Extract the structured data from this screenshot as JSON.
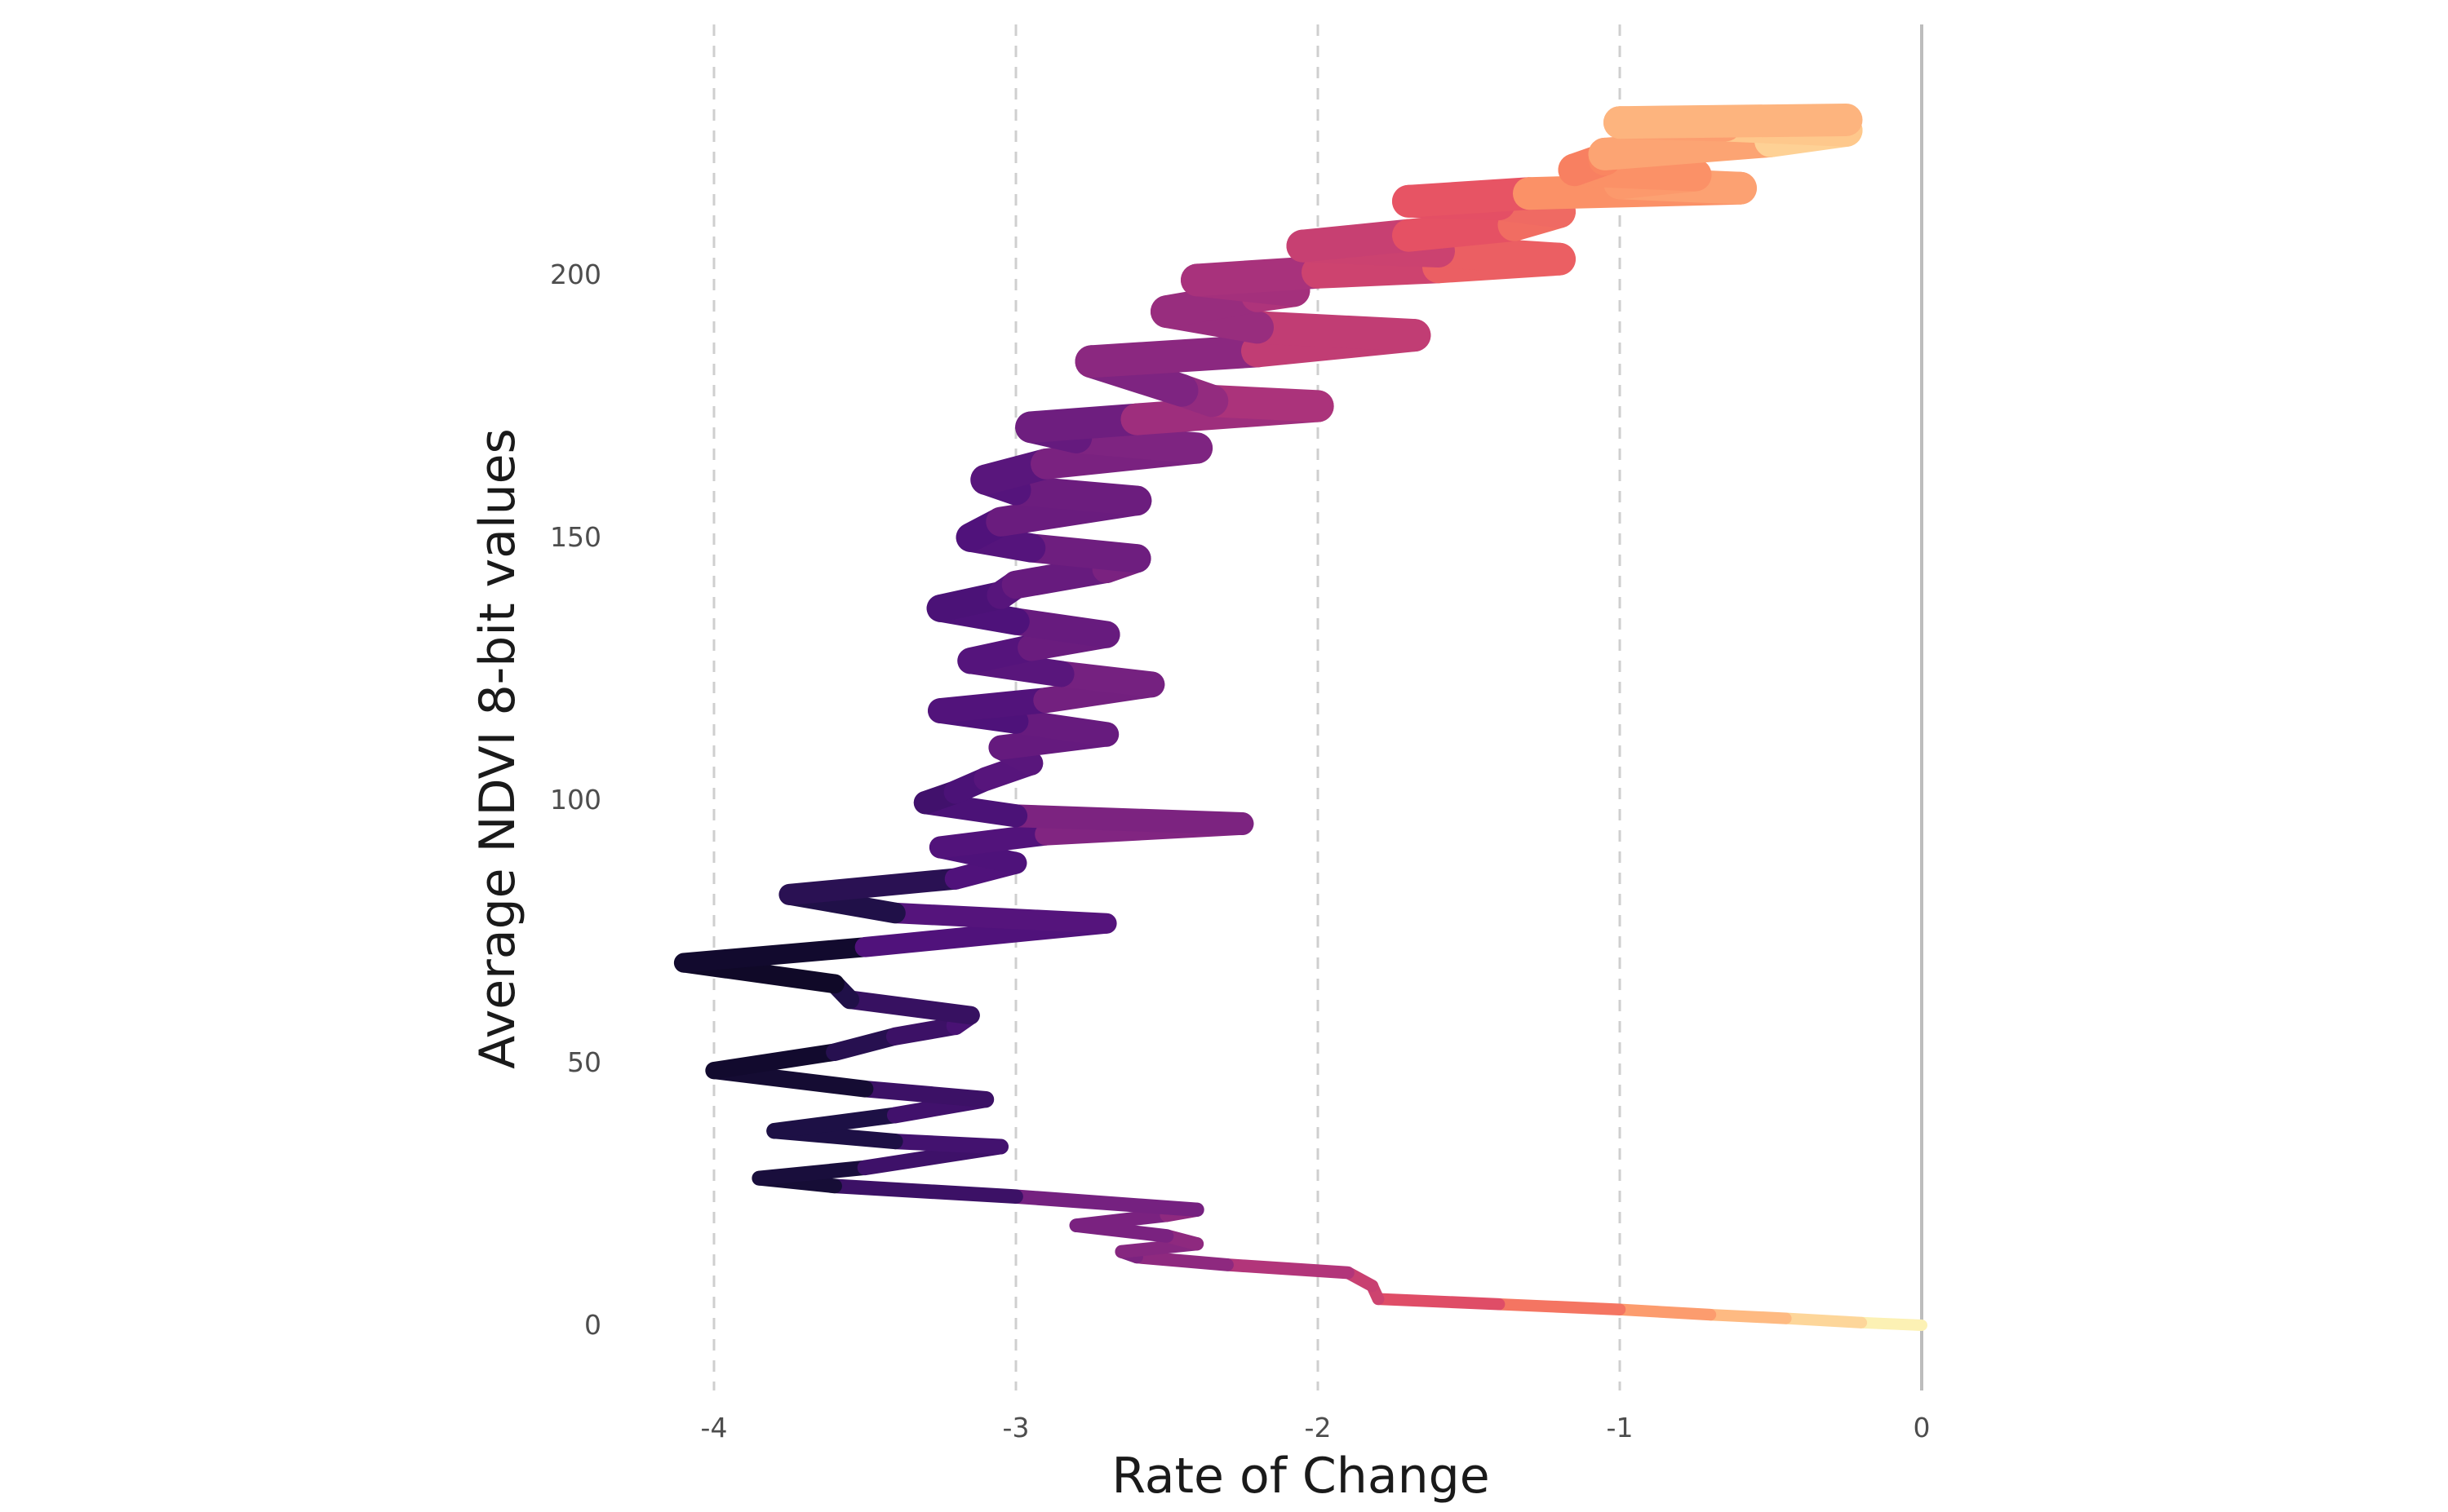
{
  "chart_data": {
    "type": "line",
    "xlabel": "Rate of Change",
    "ylabel": "Average NDVI 8-bit values",
    "xlim": [
      -4.3,
      0.05
    ],
    "ylim": [
      -10,
      242
    ],
    "x_ticks": [
      -4,
      -3,
      -2,
      -1,
      0
    ],
    "x_tick_labels": [
      "-4",
      "-3",
      "-2",
      "-1",
      "0"
    ],
    "y_ticks": [
      0,
      50,
      100,
      150,
      200
    ],
    "y_tick_labels": [
      "0",
      "50",
      "100",
      "150",
      "200"
    ],
    "grid": {
      "vertical_dashed": true,
      "horizontal": false
    },
    "reference_line_x": 0,
    "color_scale": "magma",
    "color_range": {
      "low": "#000004",
      "high": "#fcfdbf"
    },
    "points": [
      {
        "x": 0.0,
        "y": 0
      },
      {
        "x": -0.2,
        "y": 0.5
      },
      {
        "x": -0.45,
        "y": 1.3
      },
      {
        "x": -0.7,
        "y": 2
      },
      {
        "x": -1.0,
        "y": 3
      },
      {
        "x": -1.4,
        "y": 4
      },
      {
        "x": -1.8,
        "y": 5
      },
      {
        "x": -1.82,
        "y": 7.5
      },
      {
        "x": -1.9,
        "y": 10
      },
      {
        "x": -2.3,
        "y": 11.5
      },
      {
        "x": -2.6,
        "y": 13
      },
      {
        "x": -2.65,
        "y": 14
      },
      {
        "x": -2.4,
        "y": 15.5
      },
      {
        "x": -2.5,
        "y": 17
      },
      {
        "x": -2.8,
        "y": 19
      },
      {
        "x": -2.5,
        "y": 21
      },
      {
        "x": -2.4,
        "y": 22
      },
      {
        "x": -3.0,
        "y": 24.5
      },
      {
        "x": -3.6,
        "y": 26.5
      },
      {
        "x": -3.85,
        "y": 28
      },
      {
        "x": -3.5,
        "y": 30
      },
      {
        "x": -3.05,
        "y": 34
      },
      {
        "x": -3.4,
        "y": 35
      },
      {
        "x": -3.8,
        "y": 37
      },
      {
        "x": -3.4,
        "y": 40
      },
      {
        "x": -3.1,
        "y": 43
      },
      {
        "x": -3.5,
        "y": 45
      },
      {
        "x": -4.0,
        "y": 48.5
      },
      {
        "x": -3.6,
        "y": 52
      },
      {
        "x": -3.4,
        "y": 55
      },
      {
        "x": -3.2,
        "y": 57
      },
      {
        "x": -3.15,
        "y": 59
      },
      {
        "x": -3.55,
        "y": 62
      },
      {
        "x": -3.6,
        "y": 65
      },
      {
        "x": -4.1,
        "y": 69
      },
      {
        "x": -3.5,
        "y": 72
      },
      {
        "x": -2.7,
        "y": 76.5
      },
      {
        "x": -3.4,
        "y": 78.5
      },
      {
        "x": -3.75,
        "y": 82
      },
      {
        "x": -3.2,
        "y": 85
      },
      {
        "x": -3.0,
        "y": 88
      },
      {
        "x": -3.25,
        "y": 91
      },
      {
        "x": -2.9,
        "y": 93.5
      },
      {
        "x": -2.25,
        "y": 95.5
      },
      {
        "x": -3.0,
        "y": 97
      },
      {
        "x": -3.3,
        "y": 99.5
      },
      {
        "x": -3.2,
        "y": 101.5
      },
      {
        "x": -3.1,
        "y": 104
      },
      {
        "x": -2.95,
        "y": 107
      },
      {
        "x": -3.05,
        "y": 110
      },
      {
        "x": -2.7,
        "y": 112.5
      },
      {
        "x": -3.0,
        "y": 115
      },
      {
        "x": -3.25,
        "y": 117
      },
      {
        "x": -2.9,
        "y": 119
      },
      {
        "x": -2.55,
        "y": 122
      },
      {
        "x": -2.85,
        "y": 124
      },
      {
        "x": -3.15,
        "y": 126.5
      },
      {
        "x": -2.95,
        "y": 129
      },
      {
        "x": -2.7,
        "y": 131.5
      },
      {
        "x": -3.0,
        "y": 134
      },
      {
        "x": -3.25,
        "y": 136.5
      },
      {
        "x": -3.05,
        "y": 139
      },
      {
        "x": -3.0,
        "y": 141
      },
      {
        "x": -2.7,
        "y": 144
      },
      {
        "x": -2.6,
        "y": 146
      },
      {
        "x": -2.95,
        "y": 148
      },
      {
        "x": -3.15,
        "y": 150
      },
      {
        "x": -3.05,
        "y": 153
      },
      {
        "x": -2.6,
        "y": 157
      },
      {
        "x": -3.0,
        "y": 159
      },
      {
        "x": -3.1,
        "y": 161
      },
      {
        "x": -2.9,
        "y": 164
      },
      {
        "x": -2.4,
        "y": 167
      },
      {
        "x": -2.8,
        "y": 169
      },
      {
        "x": -2.95,
        "y": 171
      },
      {
        "x": -2.6,
        "y": 172.5
      },
      {
        "x": -2.0,
        "y": 175
      },
      {
        "x": -2.35,
        "y": 176
      },
      {
        "x": -2.45,
        "y": 178
      },
      {
        "x": -2.75,
        "y": 183.5
      },
      {
        "x": -2.2,
        "y": 185.5
      },
      {
        "x": -1.68,
        "y": 188.5
      },
      {
        "x": -2.2,
        "y": 190
      },
      {
        "x": -2.5,
        "y": 193
      },
      {
        "x": -2.2,
        "y": 196
      },
      {
        "x": -2.08,
        "y": 197
      },
      {
        "x": -2.4,
        "y": 199
      },
      {
        "x": -2.0,
        "y": 200.5
      },
      {
        "x": -1.6,
        "y": 201.5
      },
      {
        "x": -1.2,
        "y": 203
      },
      {
        "x": -1.6,
        "y": 204.5
      },
      {
        "x": -2.05,
        "y": 205.5
      },
      {
        "x": -1.7,
        "y": 207.5
      },
      {
        "x": -1.35,
        "y": 209.5
      },
      {
        "x": -1.2,
        "y": 212
      },
      {
        "x": -1.4,
        "y": 213.5
      },
      {
        "x": -1.7,
        "y": 214
      },
      {
        "x": -1.3,
        "y": 215.5
      },
      {
        "x": -0.6,
        "y": 216.5
      },
      {
        "x": -1.0,
        "y": 217.5
      },
      {
        "x": -0.75,
        "y": 219
      },
      {
        "x": -1.15,
        "y": 220
      },
      {
        "x": -1.05,
        "y": 222
      },
      {
        "x": -1.05,
        "y": 223
      },
      {
        "x": -0.5,
        "y": 225.5
      },
      {
        "x": -0.25,
        "y": 227.5
      },
      {
        "x": -0.65,
        "y": 228.5
      },
      {
        "x": -1.0,
        "y": 229
      },
      {
        "x": -0.25,
        "y": 229.5
      }
    ]
  }
}
